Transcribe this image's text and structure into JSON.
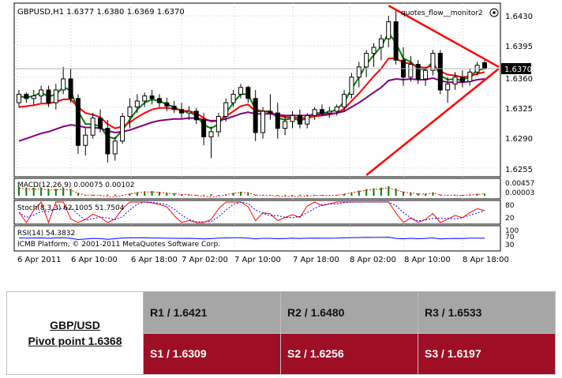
{
  "chart": {
    "header": "GBPUSD,H1  1.6377 1.6380 1.6369 1.6370",
    "indicator_label": "quotes_flow__monitor2",
    "settings_icon": "gear-icon",
    "current_price": "1.6370",
    "price_ticks": [
      "1.6430",
      "1.6395",
      "1.6360",
      "1.6325",
      "1.6290",
      "1.6255"
    ],
    "macd_label": "MACD(12,26,9) 0.00075 0.00102",
    "macd_ticks": [
      "0.00457",
      "0.00003"
    ],
    "stoch_label": "Stoch(8,3,3) 62.1005 51.7504",
    "stoch_ticks": [
      "80",
      "20"
    ],
    "rsi_label": "RSI(14) 54.3832",
    "rsi_ticks": [
      "100",
      "70",
      "30"
    ],
    "copyright": "ICMB Platform, © 2001-2011 MetaQuotes Software Corp.",
    "time_labels": [
      "6 Apr 2011",
      "6 Apr 10:00",
      "6 Apr 18:00",
      "7 Apr 02:00",
      "7 Apr 10:00",
      "7 Apr 18:00",
      "8 Apr 02:00",
      "8 Apr 10:00",
      "8 Apr 18:00"
    ],
    "colors": {
      "bull_candle": "#ffffff",
      "bear_candle": "#000000",
      "ma_fast": "#008000",
      "ma_mid": "#ff0000",
      "ma_slow": "#800080",
      "trendline": "#ff0000",
      "macd_hist": "#008000",
      "stoch_main": "#ff0000",
      "stoch_signal": "#0000ff",
      "rsi": "#0000ff"
    }
  },
  "pivot": {
    "symbol": "GBP/USD",
    "pivot_label": "Pivot point 1.6368",
    "resistance": [
      "R1 / 1.6421",
      "R2 / 1.6480",
      "R3 / 1.6533"
    ],
    "support": [
      "S1 / 1.6309",
      "S2 / 1.6256",
      "S3 / 1.6197"
    ],
    "colors": {
      "resistance_bg": "#a6a6a6",
      "support_bg": "#9e0f25"
    }
  },
  "chart_data": {
    "type": "candlestick",
    "symbol": "GBPUSD",
    "timeframe": "H1",
    "ohlc_header": {
      "open": 1.6377,
      "high": 1.638,
      "low": 1.6369,
      "close": 1.637
    },
    "price_range": [
      1.6245,
      1.6445
    ],
    "candles": [
      [
        1.633,
        1.6345,
        1.6325,
        1.634
      ],
      [
        1.634,
        1.6342,
        1.633,
        1.6335
      ],
      [
        1.6335,
        1.6345,
        1.6328,
        1.6338
      ],
      [
        1.6338,
        1.635,
        1.633,
        1.6345
      ],
      [
        1.6345,
        1.635,
        1.6325,
        1.633
      ],
      [
        1.633,
        1.6352,
        1.6322,
        1.6345
      ],
      [
        1.6345,
        1.6372,
        1.634,
        1.6358
      ],
      [
        1.6358,
        1.637,
        1.633,
        1.6335
      ],
      [
        1.6335,
        1.634,
        1.627,
        1.628
      ],
      [
        1.628,
        1.63,
        1.6268,
        1.6292
      ],
      [
        1.6292,
        1.6318,
        1.6288,
        1.6312
      ],
      [
        1.6312,
        1.6322,
        1.6295,
        1.63
      ],
      [
        1.63,
        1.631,
        1.626,
        1.627
      ],
      [
        1.627,
        1.629,
        1.6262,
        1.6285
      ],
      [
        1.6285,
        1.6318,
        1.6282,
        1.6314
      ],
      [
        1.6314,
        1.6335,
        1.63,
        1.6325
      ],
      [
        1.6325,
        1.634,
        1.6318,
        1.6332
      ],
      [
        1.6332,
        1.6342,
        1.6325,
        1.6338
      ],
      [
        1.6338,
        1.6345,
        1.6328,
        1.6335
      ],
      [
        1.6335,
        1.634,
        1.6325,
        1.633
      ],
      [
        1.633,
        1.6336,
        1.632,
        1.6326
      ],
      [
        1.6326,
        1.6332,
        1.6318,
        1.6322
      ],
      [
        1.6322,
        1.633,
        1.6312,
        1.6318
      ],
      [
        1.6318,
        1.6326,
        1.631,
        1.632
      ],
      [
        1.632,
        1.6324,
        1.6305,
        1.631
      ],
      [
        1.631,
        1.6318,
        1.628,
        1.629
      ],
      [
        1.629,
        1.6302,
        1.6265,
        1.6296
      ],
      [
        1.6296,
        1.6318,
        1.629,
        1.6314
      ],
      [
        1.6314,
        1.6335,
        1.6308,
        1.633
      ],
      [
        1.633,
        1.6345,
        1.6325,
        1.634
      ],
      [
        1.634,
        1.6352,
        1.6335,
        1.6348
      ],
      [
        1.6348,
        1.635,
        1.633,
        1.6335
      ],
      [
        1.6335,
        1.6345,
        1.6285,
        1.6295
      ],
      [
        1.6295,
        1.6325,
        1.6288,
        1.632
      ],
      [
        1.632,
        1.634,
        1.631,
        1.6318
      ],
      [
        1.6318,
        1.633,
        1.6288,
        1.63
      ],
      [
        1.63,
        1.6315,
        1.6292,
        1.6308
      ],
      [
        1.6308,
        1.632,
        1.63,
        1.6315
      ],
      [
        1.6315,
        1.6322,
        1.63,
        1.6305
      ],
      [
        1.6305,
        1.6318,
        1.63,
        1.6315
      ],
      [
        1.6315,
        1.6325,
        1.631,
        1.6322
      ],
      [
        1.6322,
        1.6328,
        1.6315,
        1.6318
      ],
      [
        1.6318,
        1.6325,
        1.6312,
        1.632
      ],
      [
        1.632,
        1.6328,
        1.6315,
        1.6325
      ],
      [
        1.6325,
        1.6345,
        1.632,
        1.634
      ],
      [
        1.634,
        1.6365,
        1.6335,
        1.636
      ],
      [
        1.636,
        1.6378,
        1.6348,
        1.6372
      ],
      [
        1.6372,
        1.6392,
        1.636,
        1.6388
      ],
      [
        1.6388,
        1.64,
        1.6372,
        1.6395
      ],
      [
        1.6395,
        1.641,
        1.638,
        1.6405
      ],
      [
        1.6405,
        1.6432,
        1.6395,
        1.6425
      ],
      [
        1.6425,
        1.6438,
        1.6375,
        1.638
      ],
      [
        1.638,
        1.6395,
        1.635,
        1.636
      ],
      [
        1.636,
        1.6385,
        1.6355,
        1.6375
      ],
      [
        1.6375,
        1.638,
        1.6352,
        1.6358
      ],
      [
        1.6358,
        1.6372,
        1.635,
        1.6368
      ],
      [
        1.6368,
        1.6392,
        1.6362,
        1.6388
      ],
      [
        1.6388,
        1.6392,
        1.634,
        1.6345
      ],
      [
        1.6345,
        1.636,
        1.633,
        1.6352
      ],
      [
        1.6352,
        1.6366,
        1.6345,
        1.636
      ],
      [
        1.636,
        1.6368,
        1.6348,
        1.6355
      ],
      [
        1.6355,
        1.637,
        1.635,
        1.6366
      ],
      [
        1.6366,
        1.6378,
        1.6362,
        1.6374
      ],
      [
        1.6377,
        1.638,
        1.6369,
        1.637
      ]
    ],
    "moving_averages": [
      {
        "color": "green",
        "values": [
          1.6338,
          1.6336,
          1.6338,
          1.6342,
          1.6337,
          1.634,
          1.6348,
          1.6345,
          1.632,
          1.6305,
          1.6305,
          1.6302,
          1.629,
          1.6288,
          1.6298,
          1.631,
          1.6322,
          1.633,
          1.6334,
          1.6332,
          1.6328,
          1.6325,
          1.632,
          1.6319,
          1.6315,
          1.6304,
          1.63,
          1.6305,
          1.6318,
          1.633,
          1.634,
          1.634,
          1.6322,
          1.632,
          1.632,
          1.6312,
          1.631,
          1.6312,
          1.6309,
          1.6312,
          1.6318,
          1.6318,
          1.6319,
          1.6322,
          1.6331,
          1.6346,
          1.636,
          1.6375,
          1.6386,
          1.6396,
          1.6412,
          1.64,
          1.6382,
          1.6378,
          1.637,
          1.6369,
          1.6378,
          1.6362,
          1.6357,
          1.6358,
          1.6356,
          1.6361,
          1.6368,
          1.637
        ]
      },
      {
        "color": "red",
        "values": [
          1.6325,
          1.6326,
          1.6327,
          1.6329,
          1.6329,
          1.6331,
          1.6334,
          1.6334,
          1.6325,
          1.6318,
          1.6316,
          1.6313,
          1.6305,
          1.63,
          1.6302,
          1.6307,
          1.6313,
          1.6318,
          1.6322,
          1.6324,
          1.6324,
          1.6323,
          1.6321,
          1.632,
          1.6318,
          1.6312,
          1.6308,
          1.6309,
          1.6314,
          1.632,
          1.6326,
          1.6328,
          1.632,
          1.632,
          1.6319,
          1.6315,
          1.6313,
          1.6313,
          1.6312,
          1.6312,
          1.6314,
          1.6315,
          1.6316,
          1.6318,
          1.6323,
          1.6332,
          1.6341,
          1.6351,
          1.6361,
          1.637,
          1.6382,
          1.6382,
          1.6377,
          1.6376,
          1.6372,
          1.6371,
          1.6374,
          1.6367,
          1.6363,
          1.6362,
          1.636,
          1.6361,
          1.6364,
          1.6366
        ]
      },
      {
        "color": "purple",
        "values": [
          1.6285,
          1.6288,
          1.6291,
          1.6294,
          1.6296,
          1.6299,
          1.6302,
          1.6304,
          1.6303,
          1.6301,
          1.6301,
          1.63,
          1.6297,
          1.6295,
          1.6296,
          1.6298,
          1.6301,
          1.6304,
          1.6307,
          1.6309,
          1.631,
          1.6311,
          1.6311,
          1.6312,
          1.6312,
          1.631,
          1.6309,
          1.6309,
          1.6311,
          1.6314,
          1.6317,
          1.6319,
          1.6317,
          1.6317,
          1.6317,
          1.6316,
          1.6315,
          1.6315,
          1.6315,
          1.6315,
          1.6316,
          1.6316,
          1.6317,
          1.6318,
          1.632,
          1.6325,
          1.633,
          1.6336,
          1.6342,
          1.6348,
          1.6356,
          1.6358,
          1.6357,
          1.6358,
          1.6357,
          1.6357,
          1.6359,
          1.6356,
          1.6354,
          1.6354,
          1.6354,
          1.6355,
          1.6357,
          1.6358
        ]
      }
    ],
    "macd": {
      "main": 0.00075,
      "signal": 0.00102,
      "range_labels": [
        0.00457,
        3e-05
      ]
    },
    "stochastic": {
      "params": "8,3,3",
      "main": 62.1005,
      "signal": 51.7504,
      "levels": [
        80,
        20
      ]
    },
    "rsi": {
      "period": 14,
      "value": 54.3832,
      "levels": [
        100,
        70,
        30
      ]
    },
    "x_labels": [
      "6 Apr 2011",
      "6 Apr 10:00",
      "6 Apr 18:00",
      "7 Apr 02:00",
      "7 Apr 10:00",
      "7 Apr 18:00",
      "8 Apr 02:00",
      "8 Apr 10:00",
      "8 Apr 18:00"
    ]
  }
}
